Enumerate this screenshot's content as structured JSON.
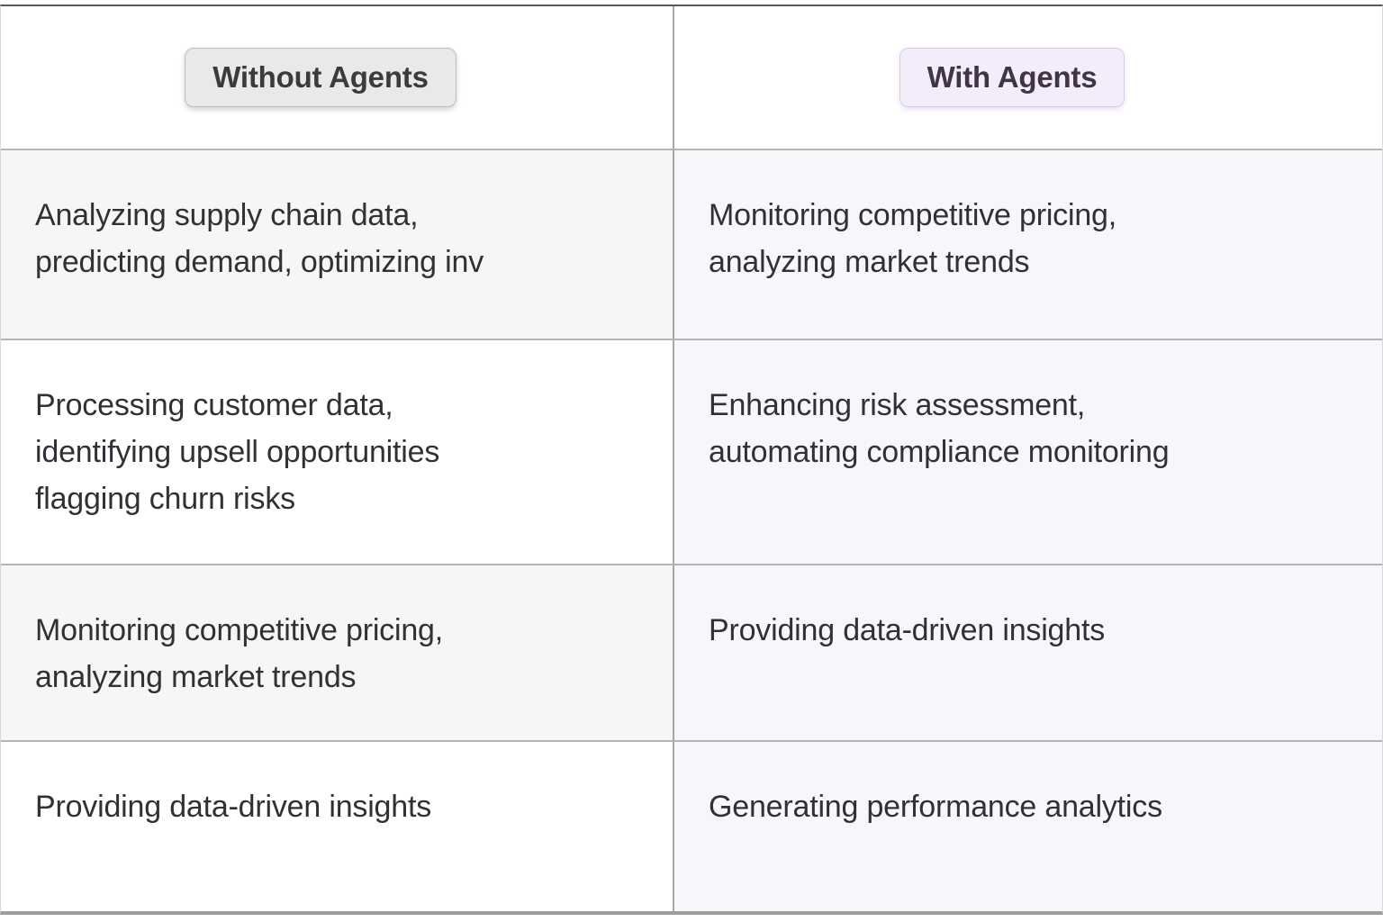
{
  "header": {
    "without_label": "Without Agents",
    "with_label": "With Agents"
  },
  "rows": [
    {
      "left": "Analyzing supply chain data,\npredicting demand, optimizing inv",
      "right": "Monitoring competitive pricing,\nanalyzing market trends"
    },
    {
      "left": "Processing customer data,\nidentifying upsell opportunities\nflagging churn risks",
      "right": "Enhancing risk assessment,\nautomating compliance monitoring"
    },
    {
      "left": "Monitoring competitive pricing,\nanalyzing market trends",
      "right": "Providing data-driven insights"
    },
    {
      "left": "Providing data-driven insights",
      "right": "Generating performance analytics"
    }
  ],
  "colors": {
    "without_badge_bg": "#e9e9e9",
    "without_badge_border": "#bfbfbf",
    "with_badge_bg": "#f3edfb",
    "with_badge_border": "#d7c9ec",
    "left_row_alt_bg": "#f6f6f7",
    "right_row_bg": "#f8f6fa"
  }
}
